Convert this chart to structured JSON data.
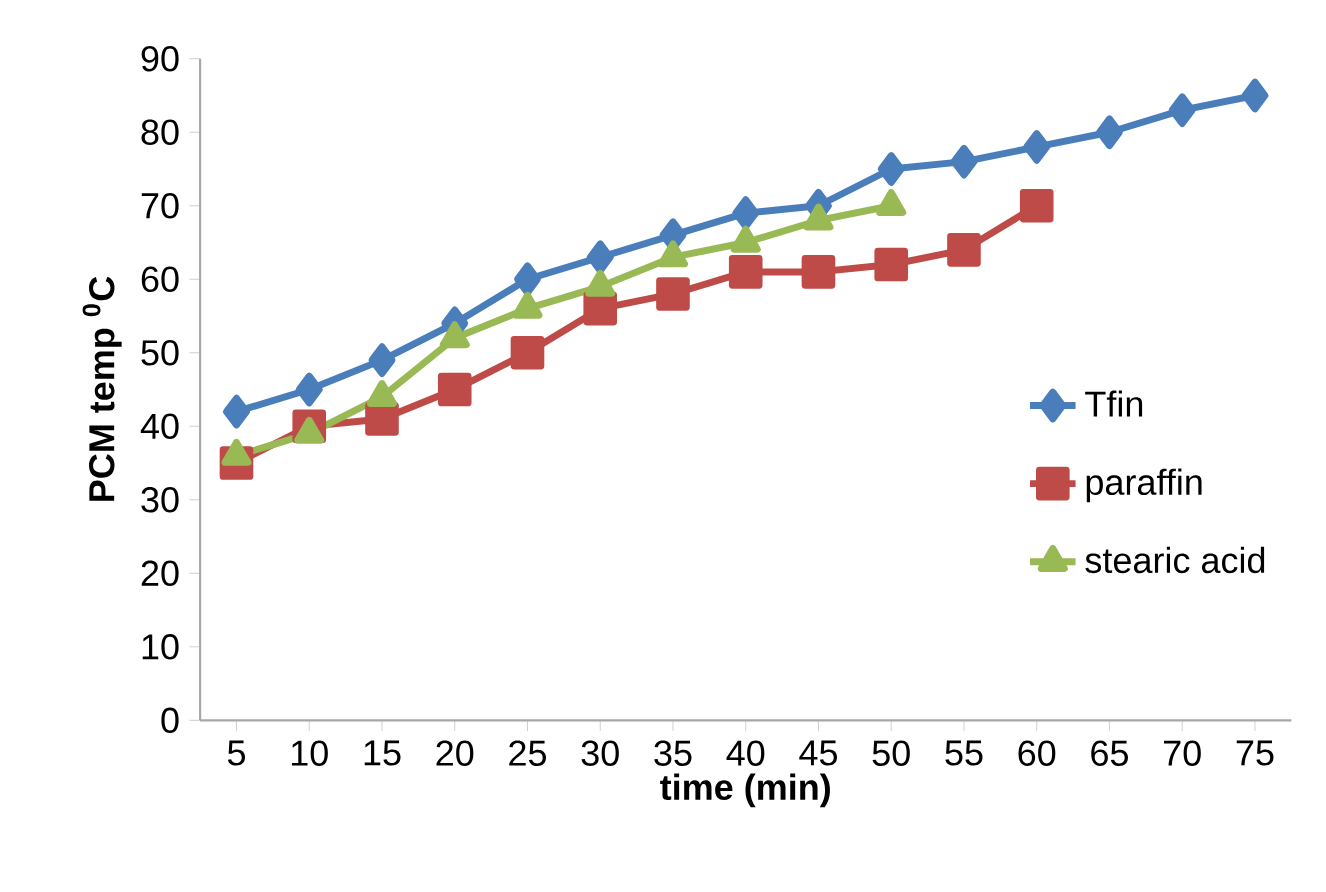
{
  "chart_data": {
    "type": "line",
    "xlabel": "time (min)",
    "ylabel": "PCM temp $^{0}$C",
    "categories": [
      "5",
      "10",
      "15",
      "20",
      "25",
      "30",
      "35",
      "40",
      "45",
      "50",
      "55",
      "60",
      "65",
      "70",
      "75"
    ],
    "ylim": [
      0,
      90
    ],
    "yticks": [
      0,
      10,
      20,
      30,
      40,
      50,
      60,
      70,
      80,
      90
    ],
    "grid": false,
    "legend": "right",
    "line_style": "solid",
    "series": [
      {
        "name": "Tfin",
        "color": "#4a7ebb",
        "marker": "diamond",
        "values": [
          42,
          45,
          49,
          54,
          60,
          63,
          66,
          69,
          70,
          75,
          76,
          78,
          80,
          83,
          85
        ]
      },
      {
        "name": "paraffin",
        "color": "#be4b48",
        "marker": "square",
        "values": [
          35,
          40,
          41,
          45,
          50,
          56,
          58,
          61,
          61,
          62,
          64,
          70,
          null,
          null,
          null
        ]
      },
      {
        "name": "stearic acid",
        "color": "#98b954",
        "marker": "triangle",
        "values": [
          36,
          39,
          44,
          52,
          56,
          59,
          63,
          65,
          68,
          70,
          null,
          null,
          null,
          null,
          null
        ]
      }
    ]
  }
}
